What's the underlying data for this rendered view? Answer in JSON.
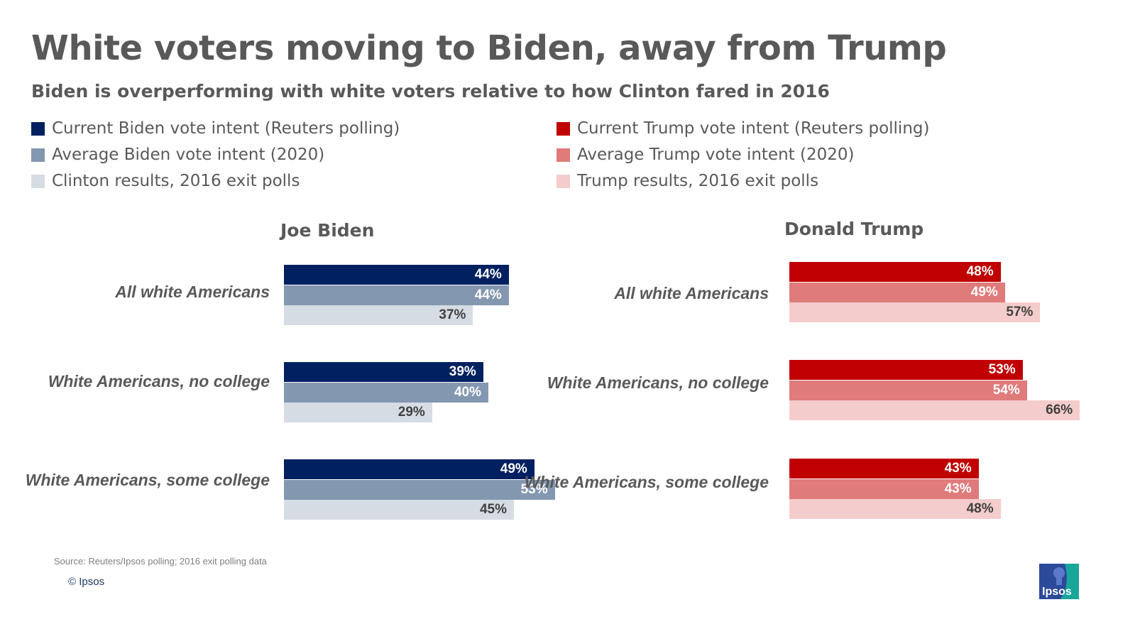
{
  "title": "White voters moving to Biden, away from Trump",
  "subtitle": "Biden is overperforming with white voters relative to how Clinton fared in 2016",
  "legend": [
    {
      "label": "Current Biden vote intent (Reuters polling)",
      "color": "#002060"
    },
    {
      "label": "Average Biden vote intent (2020)",
      "color": "#8497b0"
    },
    {
      "label": "Clinton results, 2016 exit polls",
      "color": "#d6dce4"
    },
    {
      "label": "Current Trump vote intent (Reuters polling)",
      "color": "#c00000"
    },
    {
      "label": "Average Trump vote intent (2020)",
      "color": "#e07b7b"
    },
    {
      "label": "Trump results, 2016 exit polls",
      "color": "#f4cccc"
    }
  ],
  "chart_data": [
    {
      "type": "bar",
      "orientation": "horizontal",
      "title": "Joe Biden",
      "categories": [
        "All white Americans",
        "White Americans, no college",
        "White Americans, some college"
      ],
      "series": [
        {
          "name": "Current Biden vote intent (Reuters polling)",
          "color": "#002060",
          "label_color": "#ffffff",
          "values": [
            44,
            39,
            49
          ],
          "labels": [
            "44%",
            "39%",
            "49%"
          ]
        },
        {
          "name": "Average Biden vote intent (2020)",
          "color": "#8497b0",
          "label_color": "#ffffff",
          "values": [
            44,
            40,
            53
          ],
          "labels": [
            "44%",
            "40%",
            "53%"
          ]
        },
        {
          "name": "Clinton results, 2016 exit polls",
          "color": "#d6dce4",
          "label_color": "#404040",
          "values": [
            37,
            29,
            45
          ],
          "labels": [
            "37%",
            "29%",
            "45%"
          ]
        }
      ],
      "xlim": [
        0,
        100
      ]
    },
    {
      "type": "bar",
      "orientation": "horizontal",
      "title": "Donald Trump",
      "categories": [
        "All white Americans",
        "White Americans, no college",
        "White Americans, some college"
      ],
      "series": [
        {
          "name": "Current Trump vote intent (Reuters polling)",
          "color": "#c00000",
          "label_color": "#ffffff",
          "values": [
            48,
            53,
            43
          ],
          "labels": [
            "48%",
            "53%",
            "43%"
          ]
        },
        {
          "name": "Average Trump vote intent (2020)",
          "color": "#e07b7b",
          "label_color": "#ffffff",
          "values": [
            49,
            54,
            43
          ],
          "labels": [
            "49%",
            "54%",
            "43%"
          ]
        },
        {
          "name": "Trump results, 2016 exit polls",
          "color": "#f4cccc",
          "label_color": "#404040",
          "values": [
            57,
            66,
            48
          ],
          "labels": [
            "57%",
            "66%",
            "48%"
          ]
        }
      ],
      "xlim": [
        0,
        100
      ]
    }
  ],
  "footer": {
    "source": "Source: Reuters/Ipsos polling; 2016 exit polling data",
    "copyright": "© Ipsos",
    "logo_text": "Ipsos"
  }
}
